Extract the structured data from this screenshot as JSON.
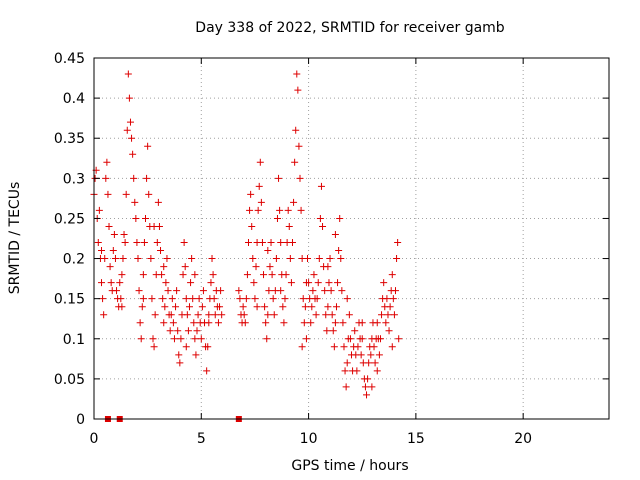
{
  "chart_data": {
    "type": "scatter",
    "title": "Day 338 of 2022, SRMTID for receiver gamb",
    "xlabel": "GPS time / hours",
    "ylabel": "SRMTID / TECUs",
    "xlim": [
      0,
      24
    ],
    "ylim": [
      0,
      0.45
    ],
    "x_ticks": [
      0,
      5,
      10,
      15,
      20
    ],
    "x_tick_labels": [
      "0",
      "5",
      "10",
      "15",
      "20"
    ],
    "y_ticks": [
      0,
      0.05,
      0.1,
      0.15,
      0.2,
      0.25,
      0.3,
      0.35,
      0.4,
      0.45
    ],
    "y_tick_labels": [
      "0",
      "0.05",
      "0.1",
      "0.15",
      "0.2",
      "0.25",
      "0.3",
      "0.35",
      "0.4",
      "0.45"
    ],
    "grid": true,
    "marker": "plus",
    "color": "#dd0000",
    "series": [
      {
        "name": "SRMTID",
        "points": [
          [
            0.0,
            0.28
          ],
          [
            0.05,
            0.3
          ],
          [
            0.1,
            0.31
          ],
          [
            0.15,
            0.25
          ],
          [
            0.2,
            0.22
          ],
          [
            0.25,
            0.26
          ],
          [
            0.3,
            0.2
          ],
          [
            0.35,
            0.17
          ],
          [
            0.4,
            0.15
          ],
          [
            0.45,
            0.13
          ],
          [
            0.5,
            0.2
          ],
          [
            0.55,
            0.3
          ],
          [
            0.6,
            0.32
          ],
          [
            0.65,
            0.28
          ],
          [
            0.7,
            0.24
          ],
          [
            0.75,
            0.19
          ],
          [
            0.8,
            0.17
          ],
          [
            0.85,
            0.16
          ],
          [
            0.9,
            0.21
          ],
          [
            0.95,
            0.23
          ],
          [
            1.0,
            0.2
          ],
          [
            1.05,
            0.16
          ],
          [
            1.1,
            0.15
          ],
          [
            1.15,
            0.14
          ],
          [
            1.2,
            0.17
          ],
          [
            1.25,
            0.15
          ],
          [
            1.3,
            0.14
          ],
          [
            1.35,
            0.2
          ],
          [
            1.4,
            0.23
          ],
          [
            1.45,
            0.22
          ],
          [
            1.5,
            0.28
          ],
          [
            1.55,
            0.36
          ],
          [
            1.6,
            0.43
          ],
          [
            1.65,
            0.4
          ],
          [
            1.7,
            0.37
          ],
          [
            1.75,
            0.35
          ],
          [
            1.8,
            0.33
          ],
          [
            1.85,
            0.3
          ],
          [
            1.9,
            0.27
          ],
          [
            1.95,
            0.25
          ],
          [
            2.0,
            0.22
          ],
          [
            2.05,
            0.2
          ],
          [
            2.1,
            0.16
          ],
          [
            2.15,
            0.12
          ],
          [
            2.2,
            0.1
          ],
          [
            2.25,
            0.14
          ],
          [
            2.3,
            0.18
          ],
          [
            2.35,
            0.22
          ],
          [
            2.4,
            0.25
          ],
          [
            2.45,
            0.3
          ],
          [
            2.5,
            0.34
          ],
          [
            2.55,
            0.28
          ],
          [
            2.6,
            0.24
          ],
          [
            2.65,
            0.2
          ],
          [
            2.7,
            0.15
          ],
          [
            2.75,
            0.1
          ],
          [
            2.8,
            0.09
          ],
          [
            2.85,
            0.13
          ],
          [
            2.9,
            0.18
          ],
          [
            2.95,
            0.22
          ],
          [
            3.0,
            0.27
          ],
          [
            3.05,
            0.24
          ],
          [
            3.1,
            0.21
          ],
          [
            3.15,
            0.18
          ],
          [
            3.2,
            0.15
          ],
          [
            3.25,
            0.12
          ],
          [
            3.3,
            0.14
          ],
          [
            3.35,
            0.17
          ],
          [
            3.4,
            0.2
          ],
          [
            3.45,
            0.16
          ],
          [
            3.5,
            0.13
          ],
          [
            3.55,
            0.11
          ],
          [
            3.6,
            0.13
          ],
          [
            3.65,
            0.15
          ],
          [
            3.7,
            0.12
          ],
          [
            3.75,
            0.1
          ],
          [
            3.8,
            0.14
          ],
          [
            3.85,
            0.16
          ],
          [
            3.9,
            0.11
          ],
          [
            3.95,
            0.08
          ],
          [
            4.0,
            0.07
          ],
          [
            4.05,
            0.1
          ],
          [
            4.1,
            0.13
          ],
          [
            4.15,
            0.18
          ],
          [
            4.2,
            0.22
          ],
          [
            4.25,
            0.19
          ],
          [
            4.3,
            0.15
          ],
          [
            4.35,
            0.13
          ],
          [
            4.4,
            0.11
          ],
          [
            4.45,
            0.14
          ],
          [
            4.5,
            0.17
          ],
          [
            4.55,
            0.2
          ],
          [
            4.6,
            0.15
          ],
          [
            4.65,
            0.12
          ],
          [
            4.7,
            0.1
          ],
          [
            4.75,
            0.08
          ],
          [
            4.8,
            0.11
          ],
          [
            4.85,
            0.13
          ],
          [
            4.9,
            0.15
          ],
          [
            4.95,
            0.12
          ],
          [
            5.0,
            0.1
          ],
          [
            5.05,
            0.14
          ],
          [
            5.1,
            0.16
          ],
          [
            5.15,
            0.12
          ],
          [
            5.2,
            0.09
          ],
          [
            5.25,
            0.06
          ],
          [
            5.3,
            0.09
          ],
          [
            5.35,
            0.12
          ],
          [
            5.4,
            0.15
          ],
          [
            5.45,
            0.17
          ],
          [
            5.5,
            0.2
          ],
          [
            5.55,
            0.18
          ],
          [
            5.6,
            0.15
          ],
          [
            5.65,
            0.13
          ],
          [
            5.7,
            0.16
          ],
          [
            5.75,
            0.14
          ],
          [
            5.8,
            0.12
          ],
          [
            5.85,
            0.14
          ],
          [
            5.9,
            0.16
          ],
          [
            5.95,
            0.13
          ],
          [
            6.75,
            0.16
          ],
          [
            6.8,
            0.15
          ],
          [
            6.85,
            0.13
          ],
          [
            6.9,
            0.12
          ],
          [
            6.95,
            0.14
          ],
          [
            7.0,
            0.13
          ],
          [
            7.05,
            0.12
          ],
          [
            7.1,
            0.15
          ],
          [
            7.15,
            0.18
          ],
          [
            7.2,
            0.22
          ],
          [
            7.25,
            0.26
          ],
          [
            7.3,
            0.28
          ],
          [
            7.35,
            0.24
          ],
          [
            7.4,
            0.2
          ],
          [
            7.45,
            0.17
          ],
          [
            7.5,
            0.15
          ],
          [
            7.55,
            0.19
          ],
          [
            7.6,
            0.22
          ],
          [
            7.65,
            0.26
          ],
          [
            7.7,
            0.29
          ],
          [
            7.75,
            0.32
          ],
          [
            7.8,
            0.27
          ],
          [
            7.85,
            0.22
          ],
          [
            7.9,
            0.18
          ],
          [
            7.95,
            0.14
          ],
          [
            8.0,
            0.12
          ],
          [
            8.05,
            0.1
          ],
          [
            8.1,
            0.13
          ],
          [
            8.15,
            0.16
          ],
          [
            8.2,
            0.19
          ],
          [
            8.25,
            0.22
          ],
          [
            8.3,
            0.18
          ],
          [
            8.35,
            0.15
          ],
          [
            8.4,
            0.13
          ],
          [
            8.45,
            0.16
          ],
          [
            8.5,
            0.2
          ],
          [
            8.55,
            0.25
          ],
          [
            8.6,
            0.3
          ],
          [
            8.65,
            0.26
          ],
          [
            8.7,
            0.22
          ],
          [
            8.75,
            0.18
          ],
          [
            8.8,
            0.14
          ],
          [
            8.85,
            0.12
          ],
          [
            8.9,
            0.15
          ],
          [
            8.95,
            0.18
          ],
          [
            9.0,
            0.22
          ],
          [
            9.05,
            0.26
          ],
          [
            9.1,
            0.24
          ],
          [
            9.15,
            0.2
          ],
          [
            9.2,
            0.17
          ],
          [
            9.25,
            0.22
          ],
          [
            9.3,
            0.27
          ],
          [
            9.35,
            0.32
          ],
          [
            9.4,
            0.36
          ],
          [
            9.45,
            0.43
          ],
          [
            9.5,
            0.41
          ],
          [
            9.55,
            0.34
          ],
          [
            9.6,
            0.3
          ],
          [
            9.65,
            0.26
          ],
          [
            9.7,
            0.2
          ],
          [
            9.75,
            0.15
          ],
          [
            9.8,
            0.12
          ],
          [
            9.85,
            0.14
          ],
          [
            9.9,
            0.17
          ],
          [
            9.95,
            0.2
          ],
          [
            10.0,
            0.17
          ],
          [
            10.05,
            0.15
          ],
          [
            10.1,
            0.12
          ],
          [
            10.15,
            0.14
          ],
          [
            10.2,
            0.16
          ],
          [
            10.25,
            0.18
          ],
          [
            10.3,
            0.15
          ],
          [
            10.35,
            0.13
          ],
          [
            10.4,
            0.15
          ],
          [
            10.45,
            0.17
          ],
          [
            10.5,
            0.2
          ],
          [
            10.55,
            0.25
          ],
          [
            10.6,
            0.29
          ],
          [
            10.65,
            0.24
          ],
          [
            10.7,
            0.19
          ],
          [
            10.75,
            0.16
          ],
          [
            10.8,
            0.13
          ],
          [
            10.85,
            0.11
          ],
          [
            10.9,
            0.14
          ],
          [
            10.95,
            0.17
          ],
          [
            11.0,
            0.2
          ],
          [
            11.05,
            0.16
          ],
          [
            11.1,
            0.13
          ],
          [
            11.15,
            0.11
          ],
          [
            11.2,
            0.09
          ],
          [
            11.25,
            0.12
          ],
          [
            11.3,
            0.14
          ],
          [
            11.35,
            0.17
          ],
          [
            11.4,
            0.21
          ],
          [
            11.45,
            0.25
          ],
          [
            11.5,
            0.2
          ],
          [
            11.55,
            0.16
          ],
          [
            11.6,
            0.12
          ],
          [
            11.65,
            0.09
          ],
          [
            11.7,
            0.06
          ],
          [
            11.75,
            0.04
          ],
          [
            11.8,
            0.07
          ],
          [
            11.85,
            0.1
          ],
          [
            11.9,
            0.13
          ],
          [
            11.95,
            0.1
          ],
          [
            12.0,
            0.08
          ],
          [
            12.05,
            0.06
          ],
          [
            12.1,
            0.09
          ],
          [
            12.15,
            0.11
          ],
          [
            12.2,
            0.08
          ],
          [
            12.25,
            0.06
          ],
          [
            12.3,
            0.09
          ],
          [
            12.35,
            0.12
          ],
          [
            12.4,
            0.1
          ],
          [
            12.45,
            0.08
          ],
          [
            12.5,
            0.1
          ],
          [
            12.55,
            0.07
          ],
          [
            12.6,
            0.05
          ],
          [
            12.65,
            0.04
          ],
          [
            12.7,
            0.03
          ],
          [
            12.75,
            0.05
          ],
          [
            12.8,
            0.07
          ],
          [
            12.85,
            0.09
          ],
          [
            12.9,
            0.08
          ],
          [
            12.95,
            0.1
          ],
          [
            13.0,
            0.12
          ],
          [
            13.05,
            0.09
          ],
          [
            13.1,
            0.07
          ],
          [
            13.15,
            0.1
          ],
          [
            13.2,
            0.12
          ],
          [
            13.25,
            0.1
          ],
          [
            13.3,
            0.08
          ],
          [
            13.35,
            0.1
          ],
          [
            13.4,
            0.13
          ],
          [
            13.45,
            0.15
          ],
          [
            13.5,
            0.17
          ],
          [
            13.55,
            0.14
          ],
          [
            13.6,
            0.12
          ],
          [
            13.65,
            0.15
          ],
          [
            13.7,
            0.13
          ],
          [
            13.75,
            0.11
          ],
          [
            13.8,
            0.14
          ],
          [
            13.85,
            0.16
          ],
          [
            13.9,
            0.18
          ],
          [
            13.95,
            0.15
          ],
          [
            14.0,
            0.13
          ],
          [
            14.05,
            0.16
          ],
          [
            14.1,
            0.2
          ],
          [
            14.15,
            0.22
          ],
          [
            14.2,
            0.1
          ],
          [
            0.35,
            0.21
          ],
          [
            1.3,
            0.18
          ],
          [
            2.3,
            0.15
          ],
          [
            3.25,
            0.19
          ],
          [
            4.3,
            0.09
          ],
          [
            5.35,
            0.13
          ],
          [
            7.6,
            0.14
          ],
          [
            8.7,
            0.16
          ],
          [
            9.9,
            0.1
          ],
          [
            10.9,
            0.19
          ],
          [
            11.8,
            0.15
          ],
          [
            12.5,
            0.12
          ],
          [
            13.2,
            0.06
          ],
          [
            13.9,
            0.09
          ],
          [
            2.8,
            0.24
          ],
          [
            4.7,
            0.18
          ],
          [
            8.1,
            0.21
          ],
          [
            9.7,
            0.09
          ],
          [
            11.25,
            0.23
          ],
          [
            12.95,
            0.04
          ]
        ]
      },
      {
        "name": "baseline",
        "marker": "square",
        "points": [
          [
            0.65,
            0
          ],
          [
            1.2,
            0
          ],
          [
            6.75,
            0
          ]
        ]
      }
    ]
  }
}
